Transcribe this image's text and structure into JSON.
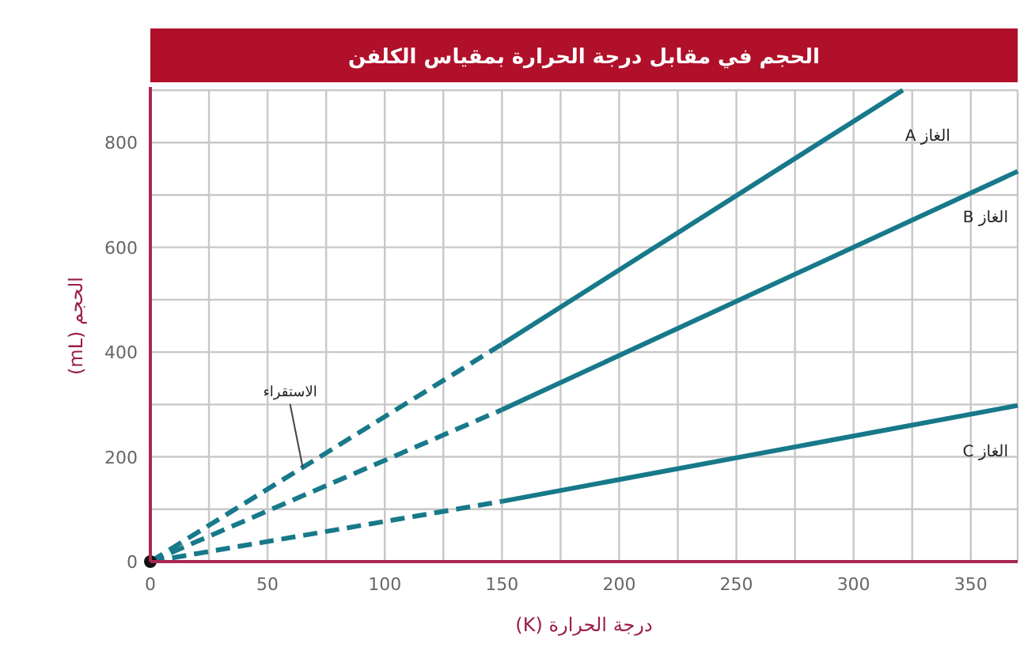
{
  "chart_data": {
    "type": "line",
    "title": "الحجم في مقابل درجة الحرارة بمقياس الكلفن",
    "xlabel": "درجة الحرارة (K)",
    "ylabel": "الحجم (mL)",
    "xlim": [
      0,
      370
    ],
    "ylim": [
      0,
      900
    ],
    "xticks": [
      0,
      {
        "value": 25,
        "label": null
      },
      50,
      {
        "value": 75,
        "label": null
      },
      100,
      {
        "value": 125,
        "label": null
      },
      150,
      {
        "value": 175,
        "label": null
      },
      200,
      {
        "value": 225,
        "label": null
      },
      250,
      {
        "value": 275,
        "label": null
      },
      300,
      {
        "value": 325,
        "label": null
      },
      350
    ],
    "yticks": [
      0,
      {
        "value": 100,
        "label": null
      },
      200,
      {
        "value": 300,
        "label": null
      },
      400,
      {
        "value": 500,
        "label": null
      },
      600,
      {
        "value": 700,
        "label": null
      },
      800
    ],
    "grid": true,
    "series": [
      {
        "x": [
          0,
          150
        ],
        "values": [
          0,
          415
        ],
        "color": "#17798a",
        "line_style": "dashed"
      },
      {
        "name": "الغاز A",
        "x": [
          150,
          321
        ],
        "values": [
          415,
          900
        ],
        "color": "#17798a",
        "line_style": "solid"
      },
      {
        "x": [
          0,
          150
        ],
        "values": [
          0,
          290
        ],
        "color": "#17798a",
        "line_style": "dashed"
      },
      {
        "name": "الغاز B",
        "x": [
          150,
          370
        ],
        "values": [
          290,
          745
        ],
        "color": "#17798a",
        "line_style": "solid"
      },
      {
        "x": [
          0,
          150
        ],
        "values": [
          0,
          115
        ],
        "color": "#17798a",
        "line_style": "dashed"
      },
      {
        "name": "الغاز C",
        "x": [
          150,
          370
        ],
        "values": [
          115,
          298
        ],
        "color": "#17798a",
        "line_style": "solid"
      },
      {
        "type": "scatter",
        "x": [
          0
        ],
        "values": [
          0
        ],
        "color": "#111111",
        "marker": "circle"
      }
    ],
    "annotations": [
      {
        "text": "الاستقراء",
        "x": 65,
        "y": 180
      }
    ]
  }
}
